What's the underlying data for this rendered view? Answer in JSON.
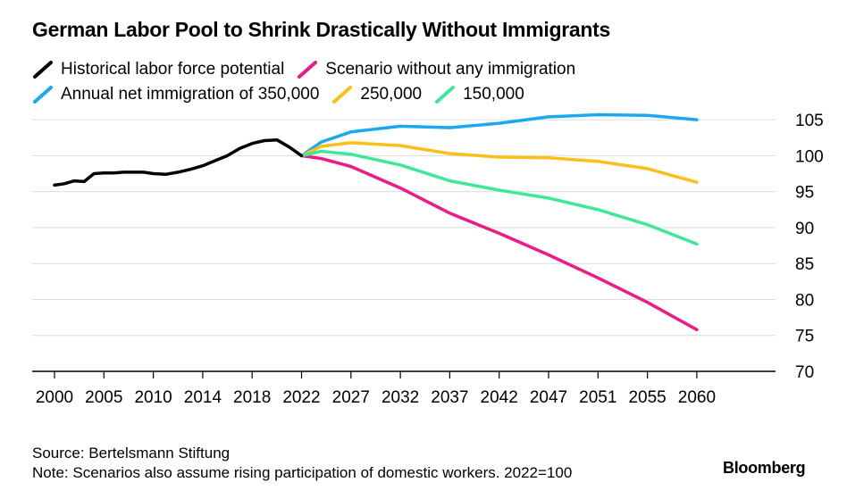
{
  "title": "German Labor Pool to Shrink Drastically Without Immigrants",
  "legend_rows": [
    [
      {
        "label": "Historical labor force potential",
        "color": "#000000"
      },
      {
        "label": "Scenario without any immigration",
        "color": "#ee1b84"
      }
    ],
    [
      {
        "label": "Annual net immigration of 350,000",
        "color": "#1aa9f0"
      },
      {
        "label": "250,000",
        "color": "#fbbf18"
      },
      {
        "label": "150,000",
        "color": "#3ee898"
      }
    ]
  ],
  "source": "Source: Bertelsmann Stiftung",
  "note": "Note: Scenarios also assume rising participation of domestic workers. 2022=100",
  "brand": "Bloomberg",
  "chart_data": {
    "type": "line",
    "title": "German Labor Pool to Shrink Drastically Without Immigrants",
    "xlabel": "",
    "ylabel": "",
    "x_ticks": [
      "2000",
      "2005",
      "2010",
      "2014",
      "2018",
      "2022",
      "2027",
      "2032",
      "2037",
      "2042",
      "2047",
      "2051",
      "2055",
      "2060"
    ],
    "y_ticks": [
      70,
      75,
      80,
      85,
      90,
      95,
      100,
      105
    ],
    "ylim": [
      70,
      107
    ],
    "y_axis_side": "right",
    "grid": "horizontal",
    "legend_position": "top-left",
    "series": [
      {
        "name": "Historical labor force potential",
        "color": "#000000",
        "points": [
          [
            2000,
            95.9
          ],
          [
            2001,
            96.1
          ],
          [
            2002,
            96.5
          ],
          [
            2003,
            96.4
          ],
          [
            2004,
            97.5
          ],
          [
            2005,
            97.6
          ],
          [
            2006,
            97.6
          ],
          [
            2007,
            97.7
          ],
          [
            2008,
            97.7
          ],
          [
            2009,
            97.7
          ],
          [
            2010,
            97.5
          ],
          [
            2011,
            97.4
          ],
          [
            2012,
            97.7
          ],
          [
            2013,
            98.1
          ],
          [
            2014,
            98.6
          ],
          [
            2015,
            99.3
          ],
          [
            2016,
            100.0
          ],
          [
            2017,
            101.0
          ],
          [
            2018,
            101.7
          ],
          [
            2019,
            102.1
          ],
          [
            2020,
            102.2
          ],
          [
            2021,
            101.2
          ],
          [
            2022,
            100.0
          ]
        ]
      },
      {
        "name": "Scenario without any immigration",
        "color": "#ee1b84",
        "points": [
          [
            2022,
            100.0
          ],
          [
            2024,
            99.6
          ],
          [
            2027,
            98.5
          ],
          [
            2032,
            95.5
          ],
          [
            2037,
            92.0
          ],
          [
            2042,
            89.2
          ],
          [
            2047,
            86.2
          ],
          [
            2051,
            83.0
          ],
          [
            2055,
            79.6
          ],
          [
            2060,
            75.8
          ]
        ]
      },
      {
        "name": "Annual net immigration of 350,000",
        "color": "#1aa9f0",
        "points": [
          [
            2022,
            100.0
          ],
          [
            2024,
            101.9
          ],
          [
            2027,
            103.3
          ],
          [
            2032,
            104.1
          ],
          [
            2037,
            103.9
          ],
          [
            2042,
            104.5
          ],
          [
            2047,
            105.4
          ],
          [
            2051,
            105.7
          ],
          [
            2055,
            105.6
          ],
          [
            2060,
            105.0
          ]
        ]
      },
      {
        "name": "250,000",
        "color": "#fbbf18",
        "points": [
          [
            2022,
            100.0
          ],
          [
            2024,
            101.3
          ],
          [
            2027,
            101.8
          ],
          [
            2032,
            101.4
          ],
          [
            2037,
            100.3
          ],
          [
            2042,
            99.8
          ],
          [
            2047,
            99.7
          ],
          [
            2051,
            99.2
          ],
          [
            2055,
            98.2
          ],
          [
            2060,
            96.3
          ]
        ]
      },
      {
        "name": "150,000",
        "color": "#3ee898",
        "points": [
          [
            2022,
            100.0
          ],
          [
            2024,
            100.6
          ],
          [
            2027,
            100.2
          ],
          [
            2032,
            98.7
          ],
          [
            2037,
            96.5
          ],
          [
            2042,
            95.2
          ],
          [
            2047,
            94.1
          ],
          [
            2051,
            92.5
          ],
          [
            2055,
            90.4
          ],
          [
            2060,
            87.7
          ]
        ]
      }
    ]
  }
}
